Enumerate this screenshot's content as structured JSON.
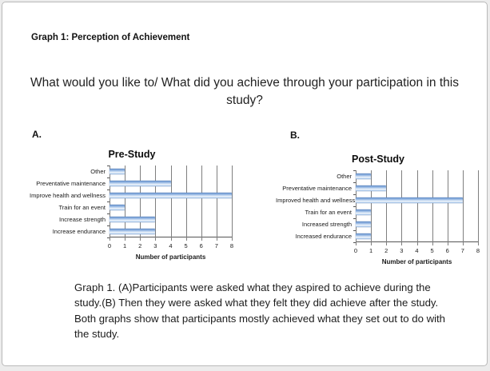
{
  "page": {
    "heading": "Graph 1: Perception of Achievement",
    "question": "What would you like to/ What did you achieve through your participation in this study?",
    "panel_a_label": "A.",
    "panel_b_label": "B.",
    "caption": "Graph 1. (A)Participants were asked what they aspired to achieve during the study.(B) Then they were asked what they felt they did achieve after the study. Both graphs show that participants mostly achieved what they set out to do with the study."
  },
  "chart_data": [
    {
      "type": "bar",
      "orientation": "horizontal",
      "title": "Pre-Study",
      "categories": [
        "Other",
        "Preventative maintenance",
        "Improve health and wellness",
        "Train for an event",
        "Increase strength",
        "Increase endurance"
      ],
      "values": [
        1,
        4,
        8,
        1,
        3,
        3
      ],
      "xlabel": "Number of participants",
      "xlim": [
        0,
        8
      ],
      "xticks": [
        0,
        1,
        2,
        3,
        4,
        5,
        6,
        7,
        8
      ],
      "grid": true,
      "legend": false,
      "bar_color": "#95b3d7",
      "gridline_color": "#7f7f7f"
    },
    {
      "type": "bar",
      "orientation": "horizontal",
      "title": "Post-Study",
      "categories": [
        "Other",
        "Preventative maintenance",
        "Improved health and wellness",
        "Train for an event",
        "Increased strength",
        "Increased endurance"
      ],
      "values": [
        1,
        2,
        7,
        1,
        1,
        1
      ],
      "xlabel": "Number of participants",
      "xlim": [
        0,
        8
      ],
      "xticks": [
        0,
        1,
        2,
        3,
        4,
        5,
        6,
        7,
        8
      ],
      "grid": true,
      "legend": false,
      "bar_color": "#95b3d7",
      "gridline_color": "#7f7f7f"
    }
  ]
}
